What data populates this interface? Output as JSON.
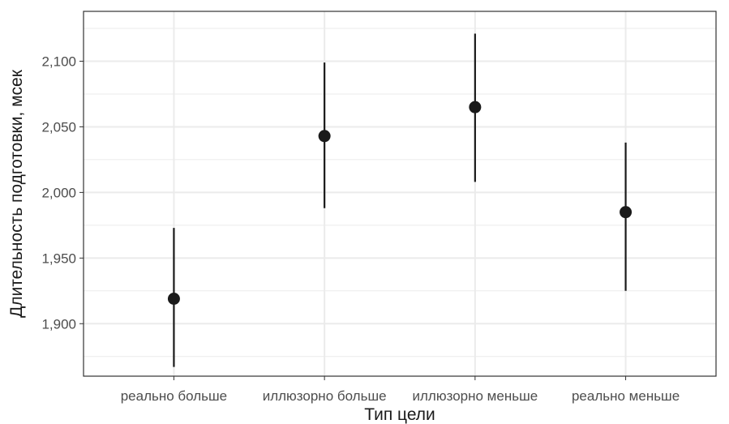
{
  "chart_data": {
    "type": "scatter",
    "subtype": "pointrange",
    "title": "",
    "xlabel": "Тип цели",
    "ylabel": "Длительность подготовки, мсек",
    "categories": [
      "реально больше",
      "иллюзорно больше",
      "иллюзорно меньше",
      "реально меньше"
    ],
    "values": [
      1919,
      2043,
      2065,
      1985
    ],
    "lower": [
      1867,
      1988,
      2008,
      1925
    ],
    "upper": [
      1973,
      2099,
      2121,
      2038
    ],
    "y_ticks": [
      1900,
      1950,
      2000,
      2050,
      2100
    ],
    "y_tick_labels": [
      "1,900",
      "1,950",
      "2,000",
      "2,050",
      "2,100"
    ],
    "ylim": [
      1860,
      2138
    ],
    "grid": true,
    "legend": "none",
    "colors": {
      "points": "#1a1a1a",
      "grid": "#ebebeb",
      "panel_border": "#333333"
    }
  }
}
